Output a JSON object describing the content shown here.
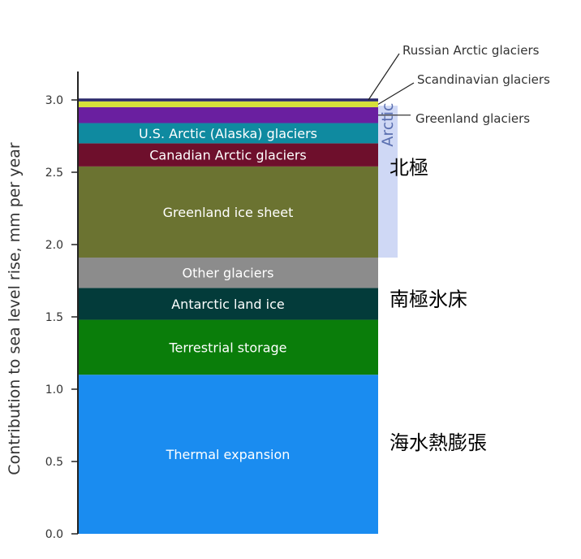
{
  "chart_data": {
    "type": "bar",
    "stacked": true,
    "ylabel": "Contribution to sea level rise, mm per year",
    "ylim": [
      0,
      3.0
    ],
    "yticks": [
      "0.0",
      "0.5",
      "1.0",
      "1.5",
      "2.0",
      "2.5",
      "3.0"
    ],
    "segments": [
      {
        "name": "Thermal expansion",
        "value": 1.1,
        "color": "#1a8cf0",
        "label_color": "#ffffff"
      },
      {
        "name": "Terrestrial storage",
        "value": 0.38,
        "color": "#0a7d0a",
        "label_color": "#ffffff"
      },
      {
        "name": "Antarctic land ice",
        "value": 0.22,
        "color": "#033b3a",
        "label_color": "#ffffff"
      },
      {
        "name": "Other glaciers",
        "value": 0.21,
        "color": "#8c8c8c",
        "label_color": "#ffffff"
      },
      {
        "name": "Greenland ice sheet",
        "value": 0.63,
        "color": "#6b7331",
        "label_color": "#e8e8d0"
      },
      {
        "name": "Canadian Arctic glaciers",
        "value": 0.16,
        "color": "#6e0f2c",
        "label_color": "#ffffff"
      },
      {
        "name": "U.S. Arctic (Alaska) glaciers",
        "value": 0.14,
        "color": "#0f8aa0",
        "label_color": "#ffffff"
      },
      {
        "name": "Greenland glaciers",
        "value": 0.11,
        "color": "#6a1fa0",
        "label_color": "#ffffff"
      },
      {
        "name": "Scandinavian glaciers",
        "value": 0.04,
        "color": "#d6e03a",
        "label_color": "#ffffff"
      },
      {
        "name": "Russian Arctic glaciers",
        "value": 0.02,
        "color": "#2b2a6b",
        "label_color": "#ffffff"
      }
    ],
    "callouts": [
      "Russian Arctic glaciers",
      "Scandinavian glaciers",
      "Greenland glaciers"
    ],
    "arctic_bracket": {
      "label": "Arctic",
      "from": 1.91,
      "to": 2.96,
      "color": "#cfd8f5"
    },
    "annotations": [
      {
        "text": "北極",
        "y": 2.53
      },
      {
        "text": "南極氷床",
        "y": 1.62
      },
      {
        "text": "海水熱膨張",
        "y": 0.63
      }
    ]
  }
}
